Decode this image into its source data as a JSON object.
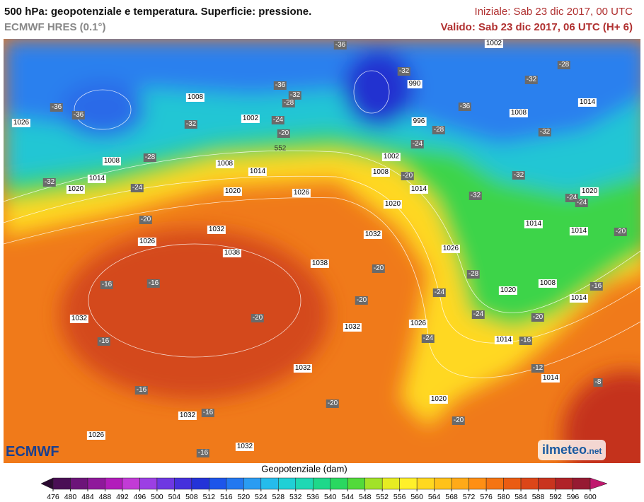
{
  "header": {
    "title": "500 hPa: geopotenziale e temperatura. Superficie: pressione.",
    "model": "ECMWF HRES (0.1°)",
    "init": "Iniziale: Sab 23 dic 2017, 00 UTC",
    "valid": "Valido: Sab 23 dic 2017, 06 UTC (H+ 6)"
  },
  "map": {
    "isobars": [
      1026,
      1008,
      1002,
      1008,
      1008,
      1014,
      1014,
      1020,
      1020,
      1026,
      1020,
      1014,
      1008,
      1002,
      996,
      990,
      1002,
      1008,
      1014,
      1020,
      1014,
      1014,
      1032,
      1026,
      1038,
      1038,
      1032,
      1026,
      1032,
      1032,
      1026,
      1032,
      1020,
      1008,
      1014,
      1014,
      1014,
      1020,
      1032,
      1026,
      1032
    ],
    "temperatures": [
      -36,
      -36,
      -36,
      -36,
      -32,
      -28,
      -32,
      -28,
      -32,
      -36,
      -32,
      -24,
      -20,
      -28,
      -24,
      -32,
      -28,
      -32,
      -24,
      -20,
      -32,
      -32,
      -24,
      -24,
      -20,
      -20,
      -16,
      -16,
      -20,
      -28,
      -24,
      -20,
      -24,
      -20,
      -20,
      -16,
      -24,
      -16,
      -16,
      -12,
      -8,
      -16,
      -20,
      -16,
      -20,
      -16
    ],
    "contour_label": 552
  },
  "logos": {
    "left": "ECMWF",
    "right": "ilmeteo",
    "right_suffix": ".net"
  },
  "colorbar": {
    "title": "Geopotenziale (dam)",
    "ticks": [
      476,
      480,
      484,
      488,
      492,
      496,
      500,
      504,
      508,
      512,
      516,
      520,
      524,
      528,
      532,
      536,
      540,
      544,
      548,
      552,
      556,
      560,
      564,
      568,
      572,
      576,
      580,
      584,
      588,
      592,
      596,
      600
    ],
    "colors": [
      "#2a0a30",
      "#4a0f55",
      "#6c1479",
      "#8f199b",
      "#b21cbb",
      "#c23bd6",
      "#9c3fe4",
      "#6e38e2",
      "#4530dc",
      "#2433d8",
      "#1d55ea",
      "#2378f0",
      "#2a9cf2",
      "#25bcec",
      "#20d0d6",
      "#1fd8b4",
      "#1ed88a",
      "#2ad860",
      "#52da3a",
      "#a2e228",
      "#e6ec22",
      "#fff02a",
      "#ffd820",
      "#ffc21a",
      "#ffaa18",
      "#ff8f14",
      "#f57412",
      "#ea5c12",
      "#dc4618",
      "#c9341e",
      "#b02328",
      "#961a32",
      "#c0186e"
    ]
  }
}
